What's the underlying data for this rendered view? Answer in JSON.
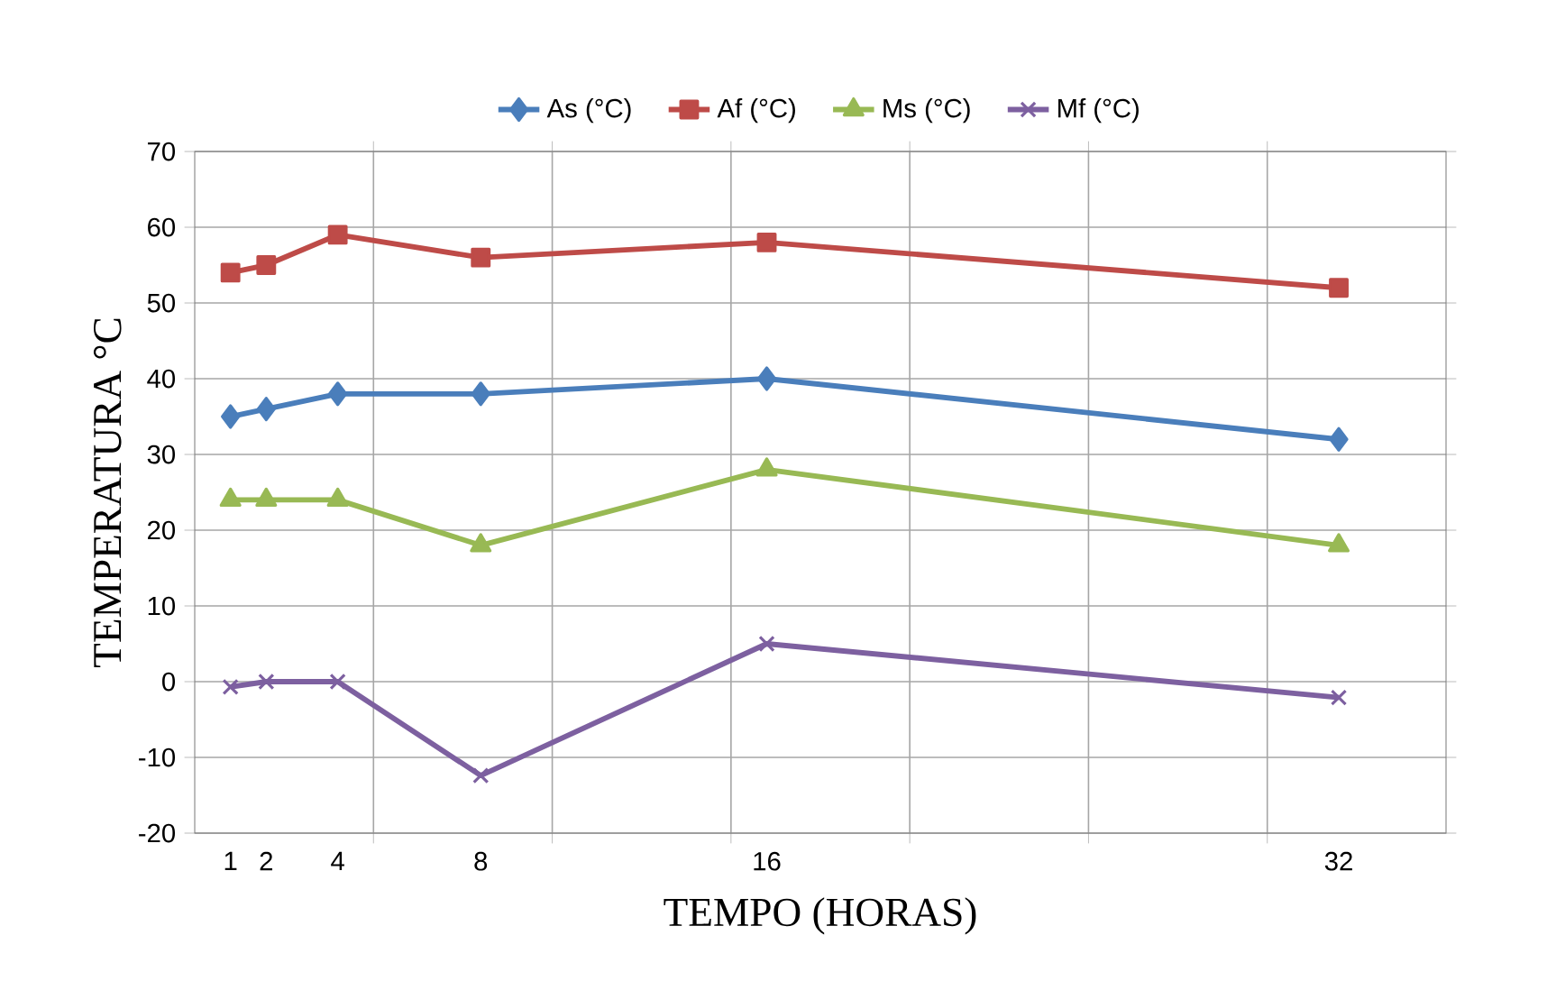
{
  "chart_data": {
    "type": "line",
    "xlabel": "TEMPO (HORAS)",
    "ylabel": "TEMPERATURA °C",
    "x": [
      1,
      2,
      4,
      8,
      16,
      32
    ],
    "series": [
      {
        "name": "As (°C)",
        "color": "#4a7ebb",
        "marker": "diamond",
        "values": [
          35,
          36,
          38,
          38,
          40,
          32
        ]
      },
      {
        "name": "Af (°C)",
        "color": "#be4b48",
        "marker": "square",
        "values": [
          54,
          55,
          59,
          56,
          58,
          52
        ]
      },
      {
        "name": "Ms (°C)",
        "color": "#98b954",
        "marker": "triangle",
        "values": [
          24,
          24,
          24,
          18,
          28,
          18
        ]
      },
      {
        "name": "Mf (°C)",
        "color": "#7d60a0",
        "marker": "cross",
        "values": [
          -0.7,
          0,
          0,
          -12.4,
          5,
          -2.1
        ]
      }
    ],
    "xlim": [
      0,
      35
    ],
    "xticks": [
      1,
      2,
      4,
      8,
      16,
      32,
      {
        "value": 5,
        "label": null
      },
      {
        "value": 10,
        "label": null
      },
      {
        "value": 15,
        "label": null
      },
      {
        "value": 20,
        "label": null
      },
      {
        "value": 25,
        "label": null
      },
      {
        "value": 30,
        "label": null
      }
    ],
    "ylim": [
      -20,
      70
    ],
    "yticks": [
      -20,
      -10,
      0,
      10,
      20,
      30,
      40,
      50,
      60,
      70
    ],
    "grid": true,
    "legend": "top"
  }
}
